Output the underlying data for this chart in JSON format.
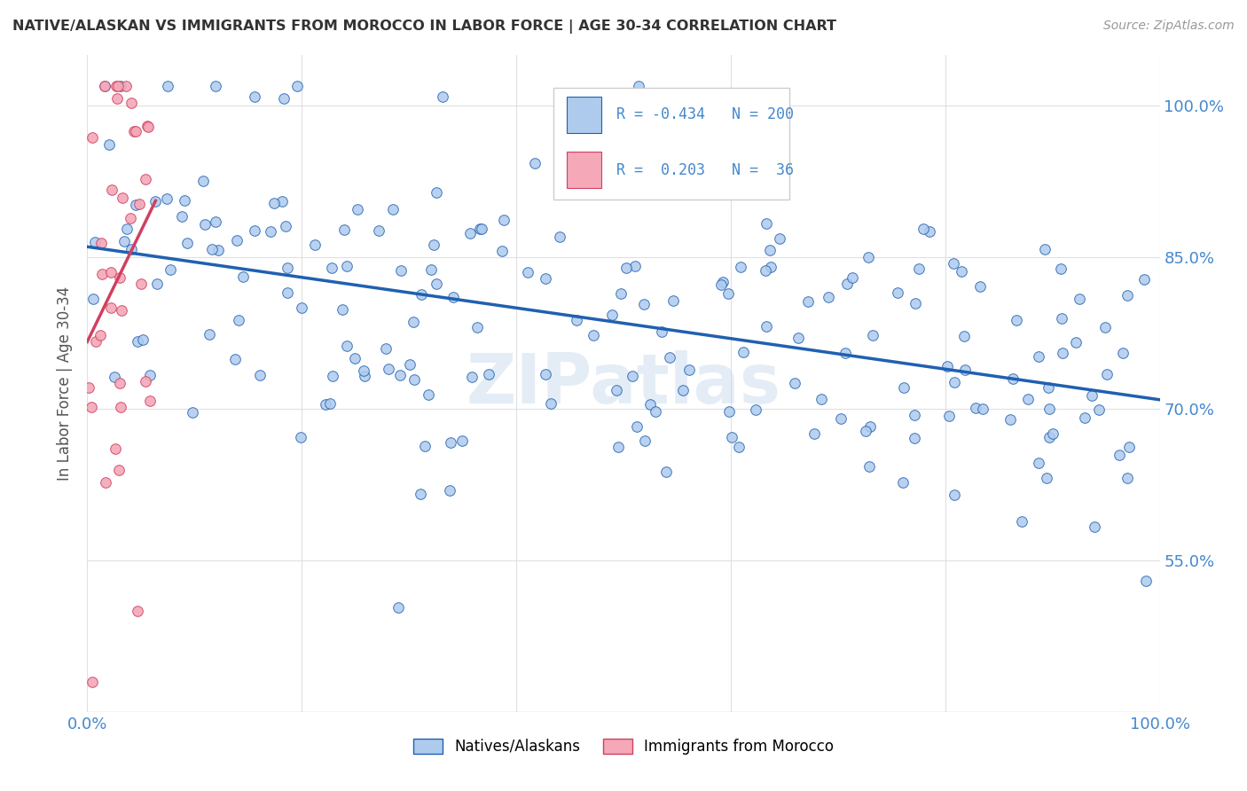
{
  "title": "NATIVE/ALASKAN VS IMMIGRANTS FROM MOROCCO IN LABOR FORCE | AGE 30-34 CORRELATION CHART",
  "source": "Source: ZipAtlas.com",
  "ylabel": "In Labor Force | Age 30-34",
  "ytick_labels": [
    "55.0%",
    "70.0%",
    "85.0%",
    "100.0%"
  ],
  "ytick_values": [
    0.55,
    0.7,
    0.85,
    1.0
  ],
  "legend_blue_label": "Natives/Alaskans",
  "legend_pink_label": "Immigrants from Morocco",
  "R_blue": -0.434,
  "N_blue": 200,
  "R_pink": 0.203,
  "N_pink": 36,
  "blue_color": "#aecbee",
  "pink_color": "#f4a8b8",
  "blue_line_color": "#2060b0",
  "pink_line_color": "#d04060",
  "watermark": "ZIPatlas",
  "background_color": "#ffffff",
  "grid_color": "#e0e0e0",
  "axis_label_color": "#4488cc",
  "title_color": "#333333",
  "source_color": "#999999",
  "xlim": [
    0.0,
    1.0
  ],
  "ylim": [
    0.4,
    1.05
  ],
  "seed_blue": 42,
  "seed_pink": 7
}
